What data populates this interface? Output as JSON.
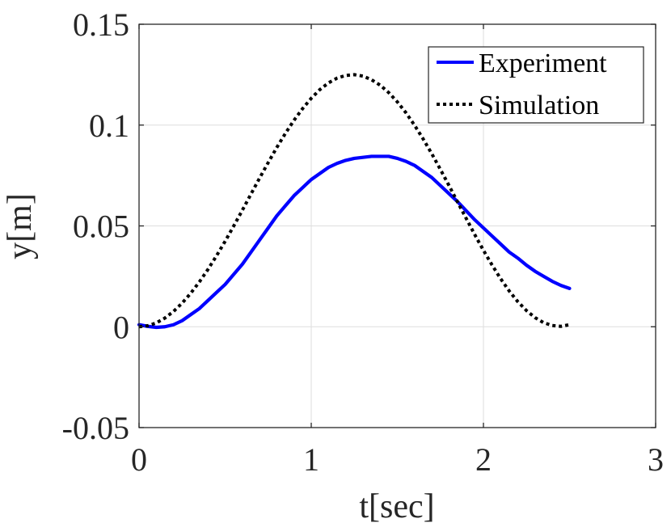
{
  "chart_data": {
    "type": "line",
    "title": "",
    "xlabel": "t[sec]",
    "ylabel": "y[m]",
    "xlim": [
      0,
      3
    ],
    "ylim": [
      -0.05,
      0.15
    ],
    "xticks": [
      0,
      1,
      2,
      3
    ],
    "xtick_labels": [
      "0",
      "1",
      "2",
      "3"
    ],
    "yticks": [
      -0.05,
      0,
      0.05,
      0.1,
      0.15
    ],
    "ytick_labels": [
      "-0.05",
      "0",
      "0.05",
      "0.1",
      "0.15"
    ],
    "grid": true,
    "legend_position": "top-right",
    "series": [
      {
        "name": "Experiment",
        "color": "#0000ff",
        "style": "solid",
        "x": [
          0,
          0.05,
          0.1,
          0.15,
          0.2,
          0.25,
          0.3,
          0.35,
          0.4,
          0.45,
          0.5,
          0.55,
          0.6,
          0.65,
          0.7,
          0.75,
          0.8,
          0.85,
          0.9,
          0.95,
          1.0,
          1.05,
          1.1,
          1.15,
          1.2,
          1.25,
          1.3,
          1.35,
          1.4,
          1.45,
          1.5,
          1.55,
          1.6,
          1.65,
          1.7,
          1.75,
          1.8,
          1.85,
          1.9,
          1.95,
          2.0,
          2.05,
          2.1,
          2.15,
          2.2,
          2.25,
          2.3,
          2.35,
          2.4,
          2.45,
          2.5
        ],
        "y": [
          0.001,
          0.0002,
          -0.0003,
          0.0,
          0.001,
          0.003,
          0.006,
          0.009,
          0.013,
          0.017,
          0.021,
          0.026,
          0.031,
          0.037,
          0.043,
          0.049,
          0.055,
          0.06,
          0.065,
          0.069,
          0.073,
          0.076,
          0.079,
          0.081,
          0.0825,
          0.0835,
          0.084,
          0.0845,
          0.0845,
          0.0845,
          0.0835,
          0.082,
          0.08,
          0.077,
          0.074,
          0.07,
          0.066,
          0.062,
          0.0575,
          0.053,
          0.049,
          0.045,
          0.041,
          0.037,
          0.034,
          0.0305,
          0.0275,
          0.025,
          0.0225,
          0.0205,
          0.019
        ]
      },
      {
        "name": "Simulation",
        "color": "#000000",
        "style": "dotted",
        "x": [
          0,
          0.05,
          0.1,
          0.15,
          0.2,
          0.25,
          0.3,
          0.35,
          0.4,
          0.45,
          0.5,
          0.55,
          0.6,
          0.65,
          0.7,
          0.75,
          0.8,
          0.85,
          0.9,
          0.95,
          1.0,
          1.05,
          1.1,
          1.15,
          1.2,
          1.25,
          1.3,
          1.35,
          1.4,
          1.45,
          1.5,
          1.55,
          1.6,
          1.65,
          1.7,
          1.75,
          1.8,
          1.85,
          1.9,
          1.95,
          2.0,
          2.05,
          2.1,
          2.15,
          2.2,
          2.25,
          2.3,
          2.35,
          2.4,
          2.45,
          2.5
        ],
        "y": [
          0.0,
          0.0005,
          0.0019,
          0.0043,
          0.0076,
          0.0117,
          0.0166,
          0.0222,
          0.0284,
          0.0352,
          0.0424,
          0.05,
          0.0578,
          0.0658,
          0.0737,
          0.0814,
          0.0889,
          0.0959,
          0.1024,
          0.1082,
          0.1133,
          0.1176,
          0.1209,
          0.1233,
          0.1246,
          0.125,
          0.1243,
          0.1225,
          0.1198,
          0.1161,
          0.1115,
          0.1061,
          0.0999,
          0.0931,
          0.0858,
          0.078,
          0.07,
          0.0618,
          0.0537,
          0.0456,
          0.0379,
          0.0306,
          0.0238,
          0.0177,
          0.0124,
          0.008,
          0.0045,
          0.002,
          0.0006,
          0.0002,
          0.001
        ]
      }
    ]
  }
}
